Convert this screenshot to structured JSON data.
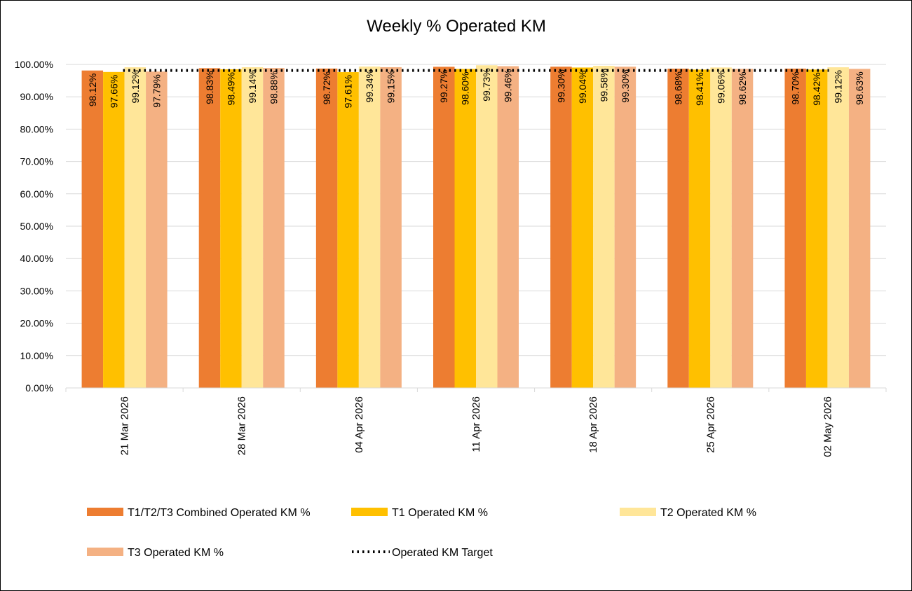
{
  "chart_data": {
    "type": "bar",
    "title": "Weekly % Operated KM",
    "xlabel": "",
    "ylabel": "",
    "ylim": [
      0,
      100
    ],
    "yticks": [
      "0.00%",
      "10.00%",
      "20.00%",
      "30.00%",
      "40.00%",
      "50.00%",
      "60.00%",
      "70.00%",
      "80.00%",
      "90.00%",
      "100.00%"
    ],
    "grid": true,
    "legend_position": "bottom",
    "categories": [
      "21 Mar 2026",
      "28 Mar 2026",
      "04 Apr 2026",
      "11 Apr 2026",
      "18 Apr 2026",
      "25 Apr 2026",
      "02 May 2026"
    ],
    "series": [
      {
        "name": "T1/T2/T3 Combined Operated KM %",
        "color": "#ED7D31",
        "values": [
          98.12,
          98.83,
          98.72,
          99.27,
          99.3,
          98.68,
          98.7
        ],
        "labels": [
          "98.12%",
          "98.83%",
          "98.72%",
          "99.27%",
          "99.30%",
          "98.68%",
          "98.70%"
        ]
      },
      {
        "name": "T1 Operated KM %",
        "color": "#FFC000",
        "values": [
          97.66,
          98.49,
          97.61,
          98.6,
          99.04,
          98.41,
          98.42
        ],
        "labels": [
          "97.66%",
          "98.49%",
          "97.61%",
          "98.60%",
          "99.04%",
          "98.41%",
          "98.42%"
        ]
      },
      {
        "name": "T2 Operated KM %",
        "color": "#FFE699",
        "values": [
          99.12,
          99.14,
          99.34,
          99.73,
          99.58,
          99.06,
          99.12
        ],
        "labels": [
          "99.12%",
          "99.14%",
          "99.34%",
          "99.73%",
          "99.58%",
          "99.06%",
          "99.12%"
        ]
      },
      {
        "name": "T3 Operated KM %",
        "color": "#F4B183",
        "values": [
          97.79,
          98.88,
          99.15,
          99.46,
          99.3,
          98.62,
          98.63
        ],
        "labels": [
          "97.79%",
          "98.88%",
          "99.15%",
          "99.46%",
          "99.30%",
          "98.62%",
          "98.63%"
        ]
      }
    ],
    "target": {
      "name": "Operated KM Target",
      "value": 99,
      "color": "#000000",
      "style": "dotted"
    }
  }
}
